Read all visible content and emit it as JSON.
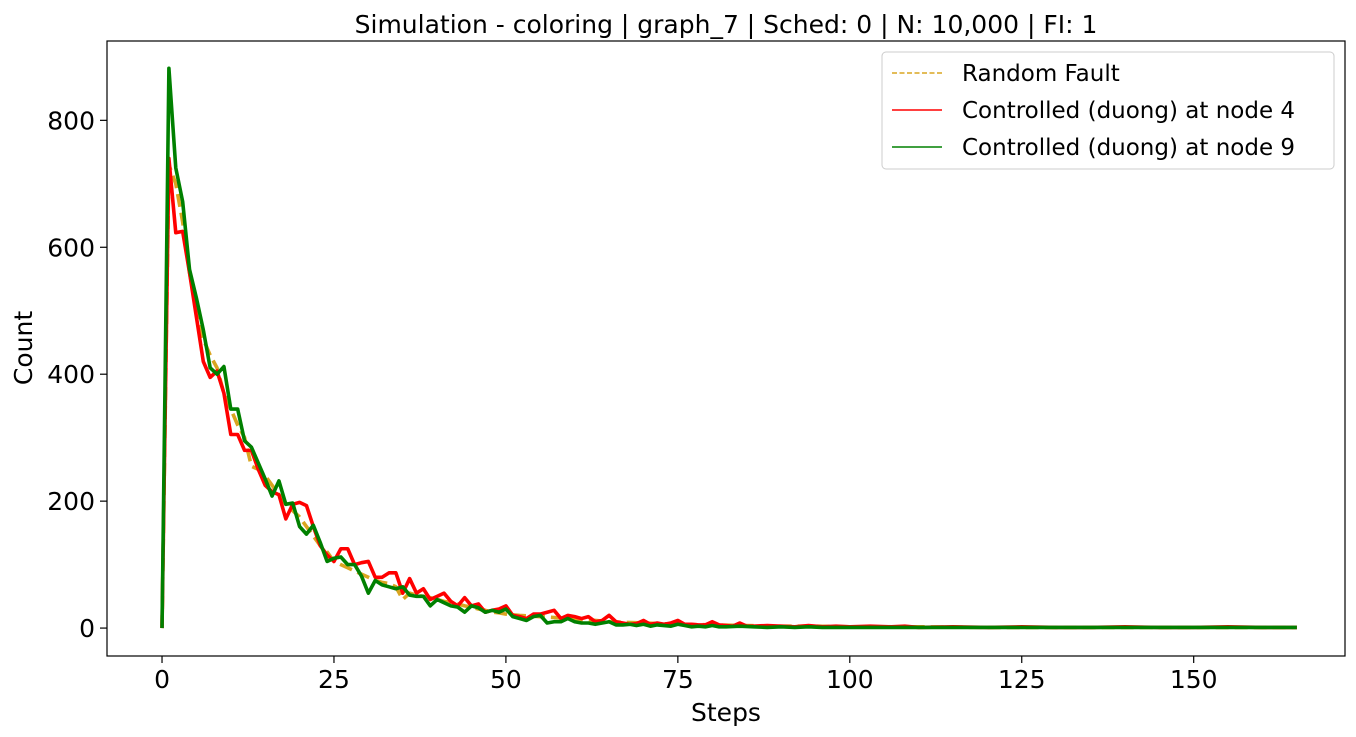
{
  "chart_data": {
    "type": "line",
    "title": "Simulation - coloring | graph_7 | Sched: 0 | N: 10,000 | FI: 1",
    "xlabel": "Steps",
    "ylabel": "Count",
    "xlim": [
      -8,
      172
    ],
    "ylim": [
      -44,
      925
    ],
    "xticks": [
      0,
      25,
      50,
      75,
      100,
      125,
      150
    ],
    "yticks": [
      0,
      200,
      400,
      600,
      800
    ],
    "grid": false,
    "legend_position": "top-right",
    "series": [
      {
        "name": "Random Fault",
        "color": "#DAA520",
        "style": "dashed",
        "points": [
          [
            0,
            0
          ],
          [
            1,
            730
          ],
          [
            2,
            700
          ],
          [
            3,
            640
          ],
          [
            4,
            560
          ],
          [
            5,
            500
          ],
          [
            6,
            455
          ],
          [
            7,
            430
          ],
          [
            8,
            410
          ],
          [
            9,
            370
          ],
          [
            10,
            345
          ],
          [
            11,
            320
          ],
          [
            12,
            300
          ],
          [
            13,
            255
          ],
          [
            14,
            250
          ],
          [
            15,
            240
          ],
          [
            16,
            225
          ],
          [
            17,
            210
          ],
          [
            18,
            195
          ],
          [
            19,
            185
          ],
          [
            20,
            175
          ],
          [
            21,
            160
          ],
          [
            22,
            145
          ],
          [
            23,
            130
          ],
          [
            24,
            120
          ],
          [
            25,
            105
          ],
          [
            26,
            100
          ],
          [
            27,
            95
          ],
          [
            28,
            90
          ],
          [
            29,
            85
          ],
          [
            30,
            80
          ],
          [
            31,
            75
          ],
          [
            32,
            72
          ],
          [
            33,
            70
          ],
          [
            34,
            65
          ],
          [
            35,
            45
          ],
          [
            36,
            55
          ],
          [
            37,
            52
          ],
          [
            38,
            50
          ],
          [
            39,
            48
          ],
          [
            40,
            45
          ],
          [
            41,
            42
          ],
          [
            42,
            40
          ],
          [
            43,
            38
          ],
          [
            44,
            35
          ],
          [
            45,
            33
          ],
          [
            46,
            30
          ],
          [
            47,
            28
          ],
          [
            48,
            25
          ],
          [
            49,
            24
          ],
          [
            50,
            22
          ],
          [
            52,
            20
          ],
          [
            55,
            18
          ],
          [
            58,
            16
          ],
          [
            60,
            14
          ],
          [
            63,
            12
          ],
          [
            65,
            10
          ],
          [
            70,
            8
          ],
          [
            75,
            6
          ],
          [
            80,
            5
          ],
          [
            85,
            4
          ],
          [
            90,
            3
          ],
          [
            95,
            3
          ],
          [
            100,
            2
          ],
          [
            110,
            2
          ],
          [
            120,
            1
          ],
          [
            130,
            1
          ],
          [
            140,
            1
          ],
          [
            150,
            1
          ],
          [
            160,
            1
          ],
          [
            165,
            1
          ]
        ]
      },
      {
        "name": "Controlled (duong) at node 4",
        "color": "#FF0000",
        "style": "solid",
        "points": [
          [
            0,
            0
          ],
          [
            1,
            740
          ],
          [
            2,
            623
          ],
          [
            3,
            625
          ],
          [
            4,
            560
          ],
          [
            5,
            490
          ],
          [
            6,
            420
          ],
          [
            7,
            395
          ],
          [
            8,
            405
          ],
          [
            9,
            370
          ],
          [
            10,
            305
          ],
          [
            11,
            305
          ],
          [
            12,
            280
          ],
          [
            13,
            280
          ],
          [
            14,
            250
          ],
          [
            15,
            225
          ],
          [
            16,
            215
          ],
          [
            17,
            210
          ],
          [
            18,
            172
          ],
          [
            19,
            195
          ],
          [
            20,
            198
          ],
          [
            21,
            193
          ],
          [
            22,
            160
          ],
          [
            23,
            130
          ],
          [
            24,
            115
          ],
          [
            25,
            105
          ],
          [
            26,
            125
          ],
          [
            27,
            125
          ],
          [
            28,
            100
          ],
          [
            29,
            103
          ],
          [
            30,
            105
          ],
          [
            31,
            80
          ],
          [
            32,
            80
          ],
          [
            33,
            87
          ],
          [
            34,
            87
          ],
          [
            35,
            55
          ],
          [
            36,
            78
          ],
          [
            37,
            55
          ],
          [
            38,
            62
          ],
          [
            39,
            45
          ],
          [
            40,
            50
          ],
          [
            41,
            55
          ],
          [
            42,
            42
          ],
          [
            43,
            35
          ],
          [
            44,
            48
          ],
          [
            45,
            35
          ],
          [
            46,
            38
          ],
          [
            47,
            25
          ],
          [
            48,
            28
          ],
          [
            49,
            30
          ],
          [
            50,
            35
          ],
          [
            51,
            20
          ],
          [
            52,
            18
          ],
          [
            53,
            15
          ],
          [
            54,
            22
          ],
          [
            55,
            22
          ],
          [
            56,
            25
          ],
          [
            57,
            28
          ],
          [
            58,
            15
          ],
          [
            59,
            20
          ],
          [
            60,
            18
          ],
          [
            61,
            15
          ],
          [
            62,
            18
          ],
          [
            63,
            10
          ],
          [
            64,
            12
          ],
          [
            65,
            20
          ],
          [
            66,
            10
          ],
          [
            67,
            8
          ],
          [
            68,
            6
          ],
          [
            69,
            7
          ],
          [
            70,
            12
          ],
          [
            71,
            6
          ],
          [
            72,
            8
          ],
          [
            73,
            6
          ],
          [
            74,
            8
          ],
          [
            75,
            12
          ],
          [
            76,
            6
          ],
          [
            77,
            6
          ],
          [
            78,
            5
          ],
          [
            79,
            5
          ],
          [
            80,
            10
          ],
          [
            81,
            5
          ],
          [
            82,
            4
          ],
          [
            83,
            3
          ],
          [
            84,
            8
          ],
          [
            85,
            3
          ],
          [
            86,
            3
          ],
          [
            88,
            4
          ],
          [
            90,
            3
          ],
          [
            92,
            2
          ],
          [
            94,
            4
          ],
          [
            96,
            2
          ],
          [
            98,
            3
          ],
          [
            100,
            2
          ],
          [
            103,
            3
          ],
          [
            106,
            2
          ],
          [
            108,
            3
          ],
          [
            110,
            1
          ],
          [
            115,
            2
          ],
          [
            120,
            1
          ],
          [
            125,
            2
          ],
          [
            130,
            1
          ],
          [
            135,
            1
          ],
          [
            140,
            2
          ],
          [
            145,
            1
          ],
          [
            150,
            1
          ],
          [
            155,
            2
          ],
          [
            160,
            1
          ],
          [
            165,
            1
          ]
        ]
      },
      {
        "name": "Controlled (duong) at node 9",
        "color": "#008000",
        "style": "solid",
        "points": [
          [
            0,
            0
          ],
          [
            1,
            882
          ],
          [
            2,
            725
          ],
          [
            3,
            672
          ],
          [
            4,
            565
          ],
          [
            5,
            520
          ],
          [
            6,
            470
          ],
          [
            7,
            410
          ],
          [
            8,
            400
          ],
          [
            9,
            412
          ],
          [
            10,
            345
          ],
          [
            11,
            345
          ],
          [
            12,
            295
          ],
          [
            13,
            285
          ],
          [
            14,
            260
          ],
          [
            15,
            235
          ],
          [
            16,
            208
          ],
          [
            17,
            232
          ],
          [
            18,
            195
          ],
          [
            19,
            197
          ],
          [
            20,
            160
          ],
          [
            21,
            148
          ],
          [
            22,
            162
          ],
          [
            23,
            135
          ],
          [
            24,
            105
          ],
          [
            25,
            110
          ],
          [
            26,
            112
          ],
          [
            27,
            100
          ],
          [
            28,
            100
          ],
          [
            29,
            82
          ],
          [
            30,
            55
          ],
          [
            31,
            75
          ],
          [
            32,
            68
          ],
          [
            33,
            65
          ],
          [
            34,
            62
          ],
          [
            35,
            65
          ],
          [
            36,
            52
          ],
          [
            37,
            50
          ],
          [
            38,
            50
          ],
          [
            39,
            35
          ],
          [
            40,
            45
          ],
          [
            41,
            40
          ],
          [
            42,
            35
          ],
          [
            43,
            33
          ],
          [
            44,
            25
          ],
          [
            45,
            35
          ],
          [
            46,
            32
          ],
          [
            47,
            25
          ],
          [
            48,
            28
          ],
          [
            49,
            25
          ],
          [
            50,
            30
          ],
          [
            51,
            18
          ],
          [
            52,
            15
          ],
          [
            53,
            12
          ],
          [
            54,
            18
          ],
          [
            55,
            20
          ],
          [
            56,
            8
          ],
          [
            57,
            10
          ],
          [
            58,
            10
          ],
          [
            59,
            15
          ],
          [
            60,
            10
          ],
          [
            61,
            8
          ],
          [
            62,
            8
          ],
          [
            63,
            6
          ],
          [
            64,
            8
          ],
          [
            65,
            10
          ],
          [
            66,
            5
          ],
          [
            67,
            5
          ],
          [
            68,
            6
          ],
          [
            69,
            4
          ],
          [
            70,
            6
          ],
          [
            71,
            3
          ],
          [
            72,
            5
          ],
          [
            73,
            4
          ],
          [
            74,
            3
          ],
          [
            75,
            6
          ],
          [
            76,
            4
          ],
          [
            77,
            2
          ],
          [
            78,
            3
          ],
          [
            79,
            2
          ],
          [
            80,
            4
          ],
          [
            81,
            2
          ],
          [
            82,
            2
          ],
          [
            84,
            3
          ],
          [
            86,
            2
          ],
          [
            88,
            1
          ],
          [
            90,
            2
          ],
          [
            92,
            1
          ],
          [
            94,
            2
          ],
          [
            96,
            1
          ],
          [
            98,
            1
          ],
          [
            100,
            1
          ],
          [
            103,
            1
          ],
          [
            106,
            1
          ],
          [
            110,
            1
          ],
          [
            115,
            1
          ],
          [
            120,
            1
          ],
          [
            125,
            1
          ],
          [
            130,
            1
          ],
          [
            140,
            1
          ],
          [
            150,
            1
          ],
          [
            160,
            1
          ],
          [
            165,
            1
          ]
        ]
      }
    ]
  }
}
